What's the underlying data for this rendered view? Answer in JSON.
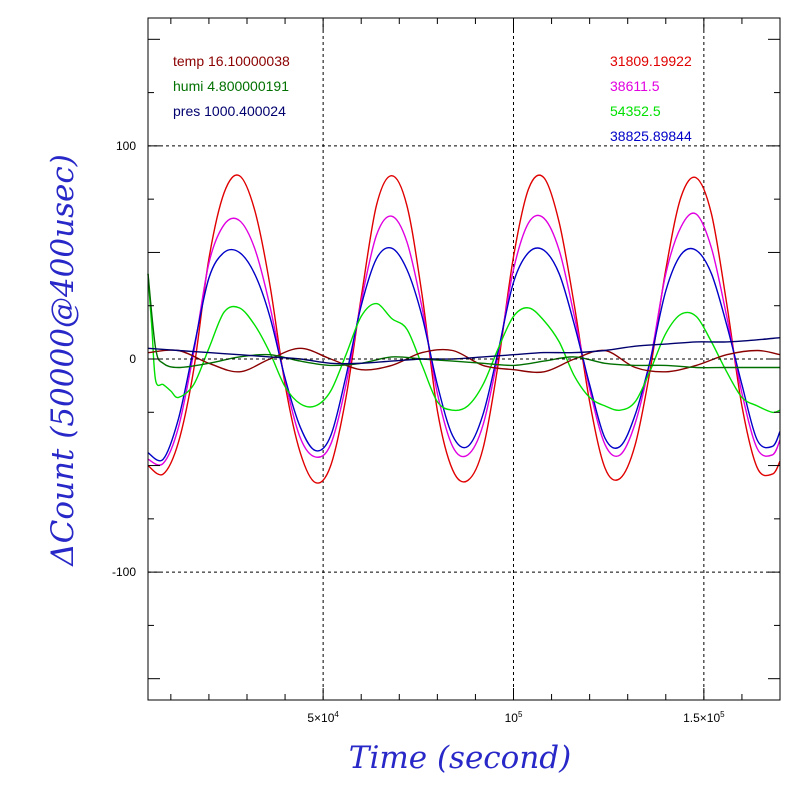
{
  "chart_data": {
    "type": "line",
    "xlabel": "Time (second)",
    "ylabel": "ΔCount (50000@400usec)",
    "xlim": [
      4000,
      170000
    ],
    "ylim": [
      -160,
      160
    ],
    "x_ticks": [
      {
        "value": 50000,
        "mantissa": "5×10",
        "exponent": "4"
      },
      {
        "value": 100000,
        "mantissa": "10",
        "exponent": "5"
      },
      {
        "value": 150000,
        "mantissa": "1.5×10",
        "exponent": "5"
      }
    ],
    "y_ticks": [
      {
        "value": 100,
        "label": "100"
      },
      {
        "value": 0,
        "label": "0"
      },
      {
        "value": -100,
        "label": "-100"
      }
    ],
    "grid": true,
    "legend_left": [
      {
        "label": "temp 16.10000038",
        "color": "#8b0000"
      },
      {
        "label": "humi 4.800000191",
        "color": "#007000"
      },
      {
        "label": "pres 1000.400024",
        "color": "#00006e"
      }
    ],
    "legend_right": [
      {
        "label": "31809.19922",
        "color": "#e00000"
      },
      {
        "label": "38611.5",
        "color": "#e000e0"
      },
      {
        "label": "54352.5",
        "color": "#00e000"
      },
      {
        "label": "38825.89844",
        "color": "#0000c8"
      }
    ],
    "series": [
      {
        "name": "31809.19922",
        "color": "#e00000",
        "x": [
          4000,
          8000,
          12000,
          16000,
          20000,
          24000,
          28000,
          32000,
          36000,
          40000,
          44000,
          48000,
          52000,
          56000,
          60000,
          64000,
          68000,
          72000,
          76000,
          80000,
          84000,
          88000,
          92000,
          96000,
          100000,
          104000,
          108000,
          112000,
          116000,
          120000,
          124000,
          128000,
          132000,
          136000,
          140000,
          144000,
          148000,
          152000,
          156000,
          160000,
          164000,
          168000,
          170000
        ],
        "y": [
          -50,
          -54,
          -39,
          -5,
          47,
          78,
          86,
          70,
          35,
          -12,
          -44,
          -58,
          -50,
          -18,
          29,
          72,
          86,
          72,
          30,
          -24,
          -52,
          -57,
          -42,
          -2,
          48,
          80,
          85,
          64,
          25,
          -20,
          -51,
          -56,
          -40,
          -4,
          42,
          76,
          85,
          68,
          26,
          -22,
          -51,
          -54,
          -48
        ]
      },
      {
        "name": "38611.5",
        "color": "#e000e0",
        "x": [
          4000,
          8000,
          12000,
          16000,
          20000,
          24000,
          28000,
          32000,
          36000,
          40000,
          44000,
          48000,
          52000,
          56000,
          60000,
          64000,
          68000,
          72000,
          76000,
          80000,
          84000,
          88000,
          92000,
          96000,
          100000,
          104000,
          108000,
          112000,
          116000,
          120000,
          124000,
          128000,
          132000,
          136000,
          140000,
          144000,
          148000,
          152000,
          156000,
          160000,
          164000,
          168000,
          170000
        ],
        "y": [
          -47,
          -49,
          -32,
          3,
          45,
          63,
          65,
          52,
          25,
          -10,
          -37,
          -46,
          -40,
          -12,
          27,
          58,
          67,
          55,
          24,
          -16,
          -41,
          -45,
          -31,
          2,
          42,
          64,
          66,
          51,
          20,
          -14,
          -40,
          -45,
          -30,
          0,
          40,
          62,
          68,
          52,
          20,
          -16,
          -42,
          -45,
          -38
        ]
      },
      {
        "name": "38825.89844",
        "color": "#0000c8",
        "x": [
          4000,
          8000,
          12000,
          16000,
          20000,
          24000,
          28000,
          32000,
          36000,
          40000,
          44000,
          48000,
          52000,
          56000,
          60000,
          64000,
          68000,
          72000,
          76000,
          80000,
          84000,
          88000,
          92000,
          96000,
          100000,
          104000,
          108000,
          112000,
          116000,
          120000,
          124000,
          128000,
          132000,
          136000,
          140000,
          144000,
          148000,
          152000,
          156000,
          160000,
          164000,
          168000,
          170000
        ],
        "y": [
          -44,
          -47,
          -28,
          5,
          38,
          50,
          50,
          40,
          20,
          -9,
          -32,
          -43,
          -36,
          -8,
          25,
          47,
          52,
          42,
          20,
          -12,
          -36,
          -41,
          -26,
          4,
          36,
          50,
          51,
          40,
          16,
          -12,
          -37,
          -41,
          -26,
          0,
          32,
          49,
          51,
          40,
          16,
          -12,
          -38,
          -41,
          -34
        ]
      },
      {
        "name": "54352.5",
        "color": "#00e000",
        "x": [
          4000,
          5000,
          6000,
          8000,
          10000,
          12000,
          16000,
          20000,
          24000,
          28000,
          32000,
          36000,
          40000,
          44000,
          48000,
          52000,
          56000,
          60000,
          64000,
          68000,
          72000,
          76000,
          80000,
          84000,
          88000,
          92000,
          96000,
          100000,
          104000,
          108000,
          112000,
          116000,
          120000,
          124000,
          128000,
          132000,
          136000,
          140000,
          144000,
          148000,
          152000,
          156000,
          160000,
          164000,
          168000,
          170000
        ],
        "y": [
          40,
          15,
          -10,
          -12,
          -15,
          -18,
          -12,
          5,
          22,
          24,
          16,
          3,
          -13,
          -21,
          -22,
          -15,
          2,
          20,
          26,
          19,
          14,
          -3,
          -20,
          -24,
          -22,
          -12,
          5,
          20,
          24,
          18,
          8,
          -8,
          -18,
          -22,
          -24,
          -20,
          -5,
          12,
          21,
          20,
          8,
          -6,
          -18,
          -22,
          -25,
          -24
        ]
      },
      {
        "name": "temp 16.10000038",
        "color": "#8b0000",
        "x": [
          4000,
          12000,
          20000,
          28000,
          36000,
          44000,
          52000,
          60000,
          68000,
          76000,
          84000,
          92000,
          100000,
          108000,
          116000,
          124000,
          132000,
          140000,
          148000,
          156000,
          164000,
          170000
        ],
        "y": [
          3,
          4,
          -2,
          -6,
          0,
          5,
          0,
          -5,
          -3,
          3,
          4,
          -3,
          -5,
          -6,
          0,
          4,
          -4,
          -6,
          -3,
          2,
          4,
          2
        ]
      },
      {
        "name": "humi 4.800000191",
        "color": "#007000",
        "x": [
          4000,
          6000,
          8000,
          12000,
          20000,
          28000,
          36000,
          44000,
          52000,
          60000,
          68000,
          76000,
          84000,
          92000,
          100000,
          108000,
          116000,
          124000,
          132000,
          140000,
          148000,
          156000,
          164000,
          170000
        ],
        "y": [
          40,
          5,
          -2,
          -4,
          -2,
          1,
          2,
          -1,
          -3,
          -2,
          1,
          0,
          -1,
          -2,
          -3,
          -1,
          1,
          -2,
          -3,
          -3,
          -4,
          -4,
          -4,
          -4
        ]
      },
      {
        "name": "pres 1000.400024",
        "color": "#00006e",
        "x": [
          4000,
          12000,
          20000,
          28000,
          36000,
          44000,
          52000,
          60000,
          68000,
          76000,
          84000,
          92000,
          100000,
          108000,
          116000,
          124000,
          132000,
          140000,
          148000,
          156000,
          164000,
          170000
        ],
        "y": [
          5,
          4,
          3,
          2,
          1,
          0,
          -2,
          -2,
          -1,
          0,
          0,
          1,
          2,
          3,
          3,
          4,
          6,
          7,
          8,
          8,
          9,
          10
        ]
      }
    ]
  }
}
